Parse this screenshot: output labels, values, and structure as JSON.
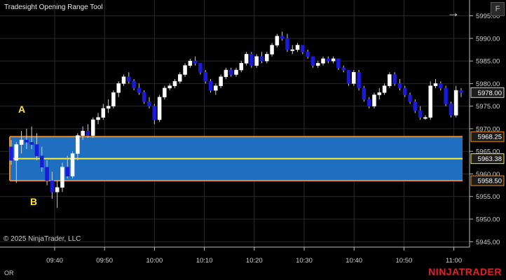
{
  "app": {
    "indicator_title": "Tradesight Opening Range Tool",
    "copyright": "© 2025 NinjaTrader, LLC",
    "footer_label": "OR",
    "brand": "NINJATRADER",
    "flag_label": "F"
  },
  "markers": {
    "a": "A",
    "b": "B"
  },
  "colors": {
    "background": "#000000",
    "grid": "#2a2a2a",
    "bull_body": "#ffffff",
    "bear_body": "#1a1adc",
    "wick": "#cfcfcf",
    "range_fill": "#1e6fc0",
    "range_border": "#f08a1e",
    "range_mid": "#f5ef3a",
    "marker": "#ffe233",
    "brand": "#e4202a"
  },
  "chart_data": {
    "type": "candlestick",
    "ylim": [
      5943.8,
      5998.5
    ],
    "y_ticks": [
      5945.0,
      5950.0,
      5955.0,
      5960.0,
      5965.0,
      5970.0,
      5975.0,
      5980.0,
      5985.0,
      5990.0,
      5995.0
    ],
    "x_ticks": [
      "09:40",
      "09:50",
      "10:00",
      "10:10",
      "10:20",
      "10:30",
      "10:40",
      "10:50",
      "11:00"
    ],
    "opening_range": {
      "high": "5968.25",
      "mid": "5963.38",
      "low": "5958.50"
    },
    "last_price": "5978.00",
    "candles": [
      [
        5966,
        5967.5,
        5962,
        5963
      ],
      [
        5963,
        5967,
        5958,
        5966.5
      ],
      [
        5966.5,
        5969.5,
        5964.5,
        5967.5
      ],
      [
        5967.5,
        5970,
        5965.5,
        5967
      ],
      [
        5967,
        5970.5,
        5965.5,
        5966.5
      ],
      [
        5966.5,
        5969,
        5963,
        5964
      ],
      [
        5964,
        5966,
        5960.5,
        5961.5
      ],
      [
        5961.5,
        5963,
        5957.5,
        5958.5
      ],
      [
        5958.5,
        5960.5,
        5954.5,
        5956
      ],
      [
        5956,
        5958.5,
        5952.5,
        5957
      ],
      [
        5957,
        5962.5,
        5956,
        5961.5
      ],
      [
        5961.5,
        5964,
        5959,
        5959.5
      ],
      [
        5959.5,
        5965,
        5959,
        5964.5
      ],
      [
        5964.5,
        5969,
        5963,
        5968.5
      ],
      [
        5968.5,
        5970.5,
        5967.5,
        5969.5
      ],
      [
        5969.5,
        5971,
        5968,
        5968.5
      ],
      [
        5968.5,
        5972.5,
        5968,
        5972
      ],
      [
        5972,
        5973.5,
        5971,
        5972.5
      ],
      [
        5972.5,
        5975.5,
        5972,
        5974.5
      ],
      [
        5974.5,
        5976.5,
        5973.5,
        5975
      ],
      [
        5975,
        5978.5,
        5974.5,
        5978
      ],
      [
        5978,
        5980.5,
        5977,
        5980
      ],
      [
        5980,
        5982,
        5979.5,
        5981.5
      ],
      [
        5981.5,
        5982.5,
        5980,
        5980.5
      ],
      [
        5980.5,
        5981,
        5978.5,
        5979
      ],
      [
        5979,
        5980,
        5977.5,
        5978
      ],
      [
        5978,
        5978.5,
        5975.5,
        5976
      ],
      [
        5976,
        5977,
        5974.5,
        5975
      ],
      [
        5975,
        5975.5,
        5971,
        5972
      ],
      [
        5972,
        5977.5,
        5971.5,
        5977
      ],
      [
        5977,
        5979.5,
        5976.5,
        5979
      ],
      [
        5979,
        5980,
        5978.5,
        5979.5
      ],
      [
        5979.5,
        5981,
        5979,
        5980.5
      ],
      [
        5980.5,
        5982.5,
        5980,
        5982
      ],
      [
        5982,
        5984.5,
        5981.5,
        5984
      ],
      [
        5984,
        5985.5,
        5983.5,
        5985
      ],
      [
        5985,
        5986,
        5984,
        5984.5
      ],
      [
        5984.5,
        5984.5,
        5982,
        5982.5
      ],
      [
        5982.5,
        5983,
        5980,
        5980.5
      ],
      [
        5980.5,
        5981,
        5978,
        5978.5
      ],
      [
        5978.5,
        5980,
        5977.5,
        5979.5
      ],
      [
        5979.5,
        5982,
        5979,
        5981.5
      ],
      [
        5981.5,
        5983.5,
        5981,
        5983
      ],
      [
        5983,
        5983.5,
        5981.5,
        5982
      ],
      [
        5982,
        5983.5,
        5981.5,
        5983
      ],
      [
        5983,
        5985,
        5982.5,
        5984.5
      ],
      [
        5984.5,
        5987,
        5984,
        5986.5
      ],
      [
        5986.5,
        5987,
        5983.5,
        5984
      ],
      [
        5984,
        5986.5,
        5983.5,
        5986
      ],
      [
        5986,
        5987,
        5984.5,
        5985
      ],
      [
        5985,
        5987,
        5984.5,
        5986.5
      ],
      [
        5986.5,
        5989,
        5986,
        5988.5
      ],
      [
        5988.5,
        5991,
        5988,
        5990.5
      ],
      [
        5990.5,
        5991.5,
        5989.5,
        5990
      ],
      [
        5990,
        5991,
        5987,
        5987.5
      ],
      [
        5987.5,
        5988.5,
        5986.5,
        5987.5
      ],
      [
        5987.5,
        5989,
        5987,
        5988.5
      ],
      [
        5988.5,
        5988.5,
        5986.5,
        5987
      ],
      [
        5987,
        5987.5,
        5985.5,
        5986
      ],
      [
        5986,
        5986,
        5983.5,
        5984
      ],
      [
        5984,
        5985,
        5983.5,
        5984.5
      ],
      [
        5984.5,
        5986,
        5984,
        5985.5
      ],
      [
        5985.5,
        5986,
        5984.5,
        5985
      ],
      [
        5985,
        5986,
        5984.5,
        5985.5
      ],
      [
        5985.5,
        5985.5,
        5983,
        5983.5
      ],
      [
        5983.5,
        5984,
        5982.5,
        5983
      ],
      [
        5983,
        5983,
        5979.5,
        5980
      ],
      [
        5980,
        5983,
        5979.5,
        5982.5
      ],
      [
        5982.5,
        5983,
        5978.5,
        5979
      ],
      [
        5979,
        5979.5,
        5976,
        5976.5
      ],
      [
        5976.5,
        5977,
        5974.5,
        5975
      ],
      [
        5975,
        5978,
        5974.5,
        5977.5
      ],
      [
        5977.5,
        5979,
        5976.5,
        5978
      ],
      [
        5978,
        5980,
        5977.5,
        5979.5
      ],
      [
        5979.5,
        5982.5,
        5979,
        5982
      ],
      [
        5982,
        5982.5,
        5979.5,
        5980
      ],
      [
        5980,
        5981,
        5978.5,
        5979
      ],
      [
        5979,
        5979.5,
        5977,
        5977.5
      ],
      [
        5977.5,
        5978,
        5975.5,
        5976
      ],
      [
        5976,
        5976.5,
        5973.5,
        5974
      ],
      [
        5974,
        5975,
        5972,
        5972.5
      ],
      [
        5972.5,
        5973,
        5972,
        5972.5
      ],
      [
        5972.5,
        5980.5,
        5972,
        5979.5
      ],
      [
        5979.5,
        5981,
        5979,
        5980
      ],
      [
        5980,
        5980.5,
        5978.5,
        5979
      ],
      [
        5979,
        5979.5,
        5975,
        5975.5
      ],
      [
        5975.5,
        5976,
        5972.5,
        5973
      ],
      [
        5973,
        5979.5,
        5972.5,
        5978.5
      ],
      [
        5978.5,
        5979,
        5977,
        5978
      ]
    ]
  }
}
